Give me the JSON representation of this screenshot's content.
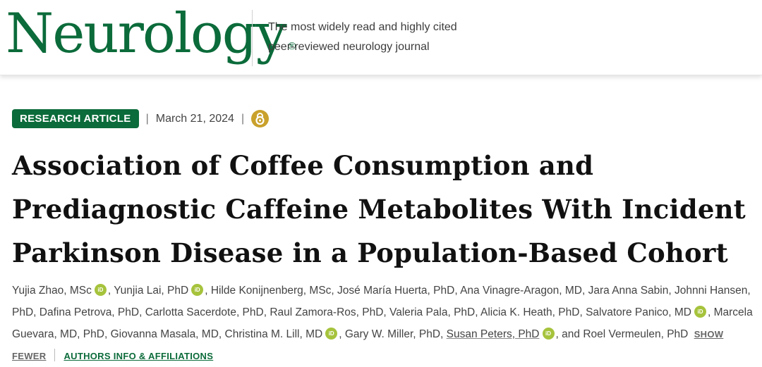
{
  "header": {
    "logo_text": "Neurology",
    "logo_mark": "®",
    "tagline_line1": "The most widely read and highly cited",
    "tagline_line2": "peer-reviewed neurology journal"
  },
  "article": {
    "type_badge": "RESEARCH ARTICLE",
    "date": "March 21, 2024",
    "open_access_icon": "open-access-icon",
    "title": "Association of Coffee Consumption and Prediagnostic Caffeine Metabolites With Incident Parkinson Disease in a Population-Based Cohort"
  },
  "authors": [
    {
      "name": "Yujia Zhao, MSc",
      "orcid": true
    },
    {
      "name": "Yunjia Lai, PhD",
      "orcid": true
    },
    {
      "name": "Hilde Konijnenberg, MSc",
      "orcid": false
    },
    {
      "name": "José María Huerta, PhD",
      "orcid": false
    },
    {
      "name": "Ana Vinagre-Aragon, MD",
      "orcid": false
    },
    {
      "name": "Jara Anna Sabin",
      "orcid": false
    },
    {
      "name": "Johnni Hansen, PhD",
      "orcid": false
    },
    {
      "name": "Dafina Petrova, PhD",
      "orcid": false
    },
    {
      "name": "Carlotta Sacerdote, PhD",
      "orcid": false
    },
    {
      "name": "Raul Zamora-Ros, PhD",
      "orcid": false
    },
    {
      "name": "Valeria Pala, PhD",
      "orcid": false
    },
    {
      "name": "Alicia K. Heath, PhD",
      "orcid": false
    },
    {
      "name": "Salvatore Panico, MD",
      "orcid": true
    },
    {
      "name": "Marcela Guevara, MD, PhD",
      "orcid": false
    },
    {
      "name": "Giovanna Masala, MD",
      "orcid": false
    },
    {
      "name": "Christina M. Lill, MD",
      "orcid": true
    },
    {
      "name": "Gary W. Miller, PhD",
      "orcid": false
    },
    {
      "name": "Susan Peters, PhD",
      "orcid": true,
      "underlined": true
    },
    {
      "name": "Roel Vermeulen, PhD",
      "orcid": false
    }
  ],
  "authors_ui": {
    "orcid_label": "iD",
    "and_text": "and",
    "show_fewer": "SHOW FEWER",
    "affiliations": "AUTHORS INFO & AFFILIATIONS"
  },
  "colors": {
    "brand_green": "#0b6b3a",
    "orcid_green": "#a6c33c",
    "open_access_gold": "#c9a12c"
  }
}
